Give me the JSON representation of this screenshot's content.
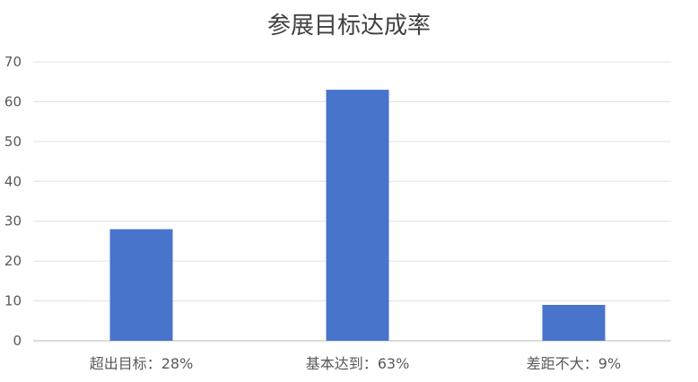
{
  "chart_data": {
    "type": "bar",
    "title": "参展目标达成率",
    "categories": [
      "超出目标：28%",
      "基本达到：63%",
      "差距不大：9%"
    ],
    "values": [
      28,
      63,
      9
    ],
    "ylim": [
      0,
      70
    ],
    "yticks": [
      0,
      10,
      20,
      30,
      40,
      50,
      60,
      70
    ],
    "grid": true,
    "legend": "none",
    "bar_color": "#4874CB"
  }
}
